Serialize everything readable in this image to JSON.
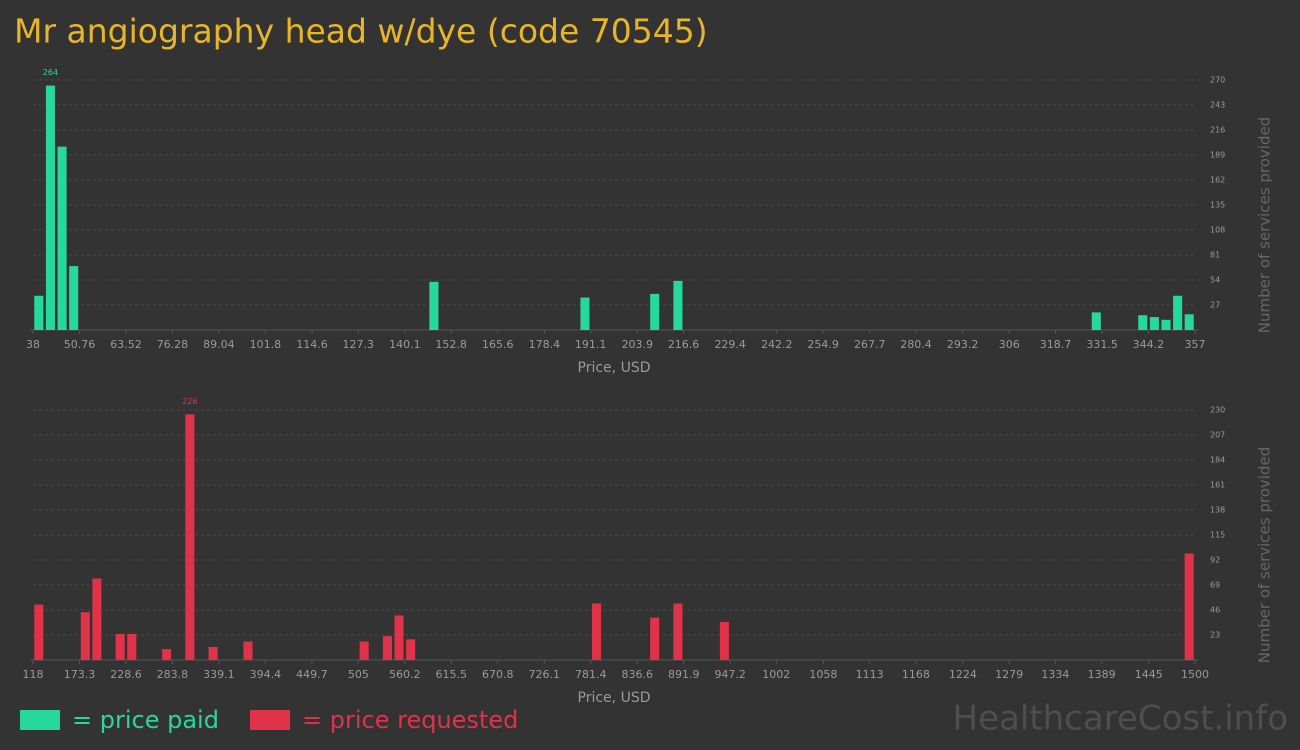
{
  "title": "Mr angiography head w/dye (code 70545)",
  "watermark": "HealthcareCost.info",
  "chart_data": [
    {
      "type": "bar",
      "xlabel": "Price, USD",
      "ylabel": "Number of services provided",
      "grid": true,
      "peak_label": true,
      "x": [
        39.6,
        42.79,
        45.98,
        49.17,
        148.06,
        189.53,
        208.67,
        215.05,
        329.9,
        342.66,
        345.85,
        349.04,
        352.23,
        355.41
      ],
      "series": [
        {
          "name": "= price paid",
          "color": "#27d89c",
          "values": [
            37,
            264,
            198,
            69,
            52,
            35,
            39,
            53,
            19,
            16,
            14,
            11,
            37,
            17
          ]
        }
      ],
      "xlim": [
        38,
        357
      ],
      "xticks": [
        38,
        50.76,
        63.52,
        76.28,
        89.04,
        101.8,
        114.6,
        127.3,
        140.1,
        152.8,
        165.6,
        178.4,
        191.1,
        203.9,
        216.6,
        229.4,
        242.2,
        254.9,
        267.7,
        280.4,
        293.2,
        306,
        318.7,
        331.5,
        344.2,
        357
      ],
      "ylim": [
        0,
        270
      ],
      "yticks": [
        27,
        54,
        81,
        108,
        135,
        162,
        189,
        216,
        243,
        270
      ]
    },
    {
      "type": "bar",
      "xlabel": "Price, USD",
      "ylabel": "Number of services provided",
      "grid": true,
      "peak_label": true,
      "x": [
        124.91,
        180.19,
        194.01,
        221.65,
        235.47,
        276.93,
        304.57,
        332.21,
        373.67,
        511.87,
        539.51,
        553.33,
        567.15,
        788.27,
        857.37,
        885.01,
        940.29,
        1493.09
      ],
      "series": [
        {
          "name": "= price requested",
          "color": "#e0334a",
          "values": [
            51,
            44,
            75,
            24,
            24,
            10,
            226,
            12,
            17,
            17,
            22,
            41,
            19,
            52,
            39,
            52,
            35,
            98
          ]
        }
      ],
      "xlim": [
        118,
        1500
      ],
      "xticks": [
        118,
        173.3,
        228.6,
        283.8,
        339.1,
        394.4,
        449.7,
        505,
        560.2,
        615.5,
        670.8,
        726.1,
        781.4,
        836.6,
        891.9,
        947.2,
        1002,
        1058,
        1113,
        1168,
        1224,
        1279,
        1334,
        1389,
        1445,
        1500
      ],
      "ylim": [
        0,
        230
      ],
      "yticks": [
        23,
        46,
        69,
        92,
        115,
        138,
        161,
        184,
        207,
        230
      ]
    }
  ]
}
